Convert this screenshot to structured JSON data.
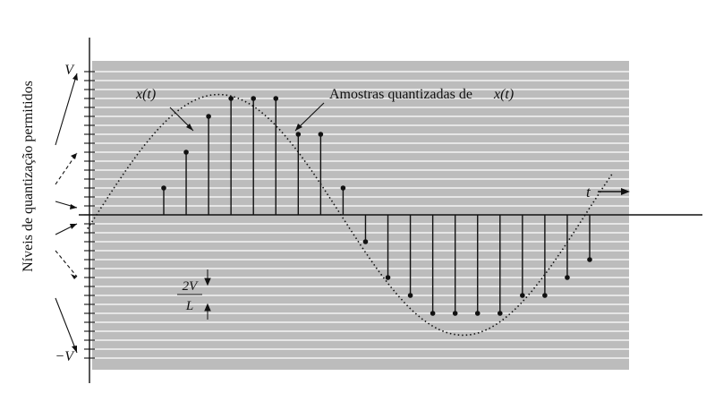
{
  "labels": {
    "y_axis_title": "Níveis de quantização permitidos",
    "v_top": "V",
    "v_bottom": "−V",
    "signal": "x(t)",
    "samples_prefix": "Amostras quantizadas de",
    "samples_signal": "x(t)",
    "time": "t",
    "step_num": "2V",
    "step_den": "L"
  },
  "colors": {
    "band": "#bcbcbc",
    "level_line": "#ffffff",
    "ink": "#111111"
  },
  "levels": {
    "count": 16,
    "range": [
      -1,
      1
    ]
  },
  "chart_data": {
    "type": "scatter",
    "xlim": [
      0,
      1
    ],
    "ylim": [
      -1,
      1
    ],
    "samples": {
      "t": [
        0,
        0.05,
        0.1,
        0.15,
        0.2,
        0.25,
        0.3,
        0.35,
        0.4,
        0.45,
        0.5,
        0.55,
        0.6,
        0.65,
        0.7,
        0.75,
        0.8,
        0.85,
        0.9,
        0.95
      ],
      "quantized": [
        0.1875,
        0.4375,
        0.6875,
        0.8125,
        0.8125,
        0.8125,
        0.5625,
        0.5625,
        0.1875,
        -0.1875,
        -0.4375,
        -0.5625,
        -0.6875,
        -0.6875,
        -0.6875,
        -0.6875,
        -0.5625,
        -0.5625,
        -0.4375,
        -0.3125
      ]
    }
  }
}
